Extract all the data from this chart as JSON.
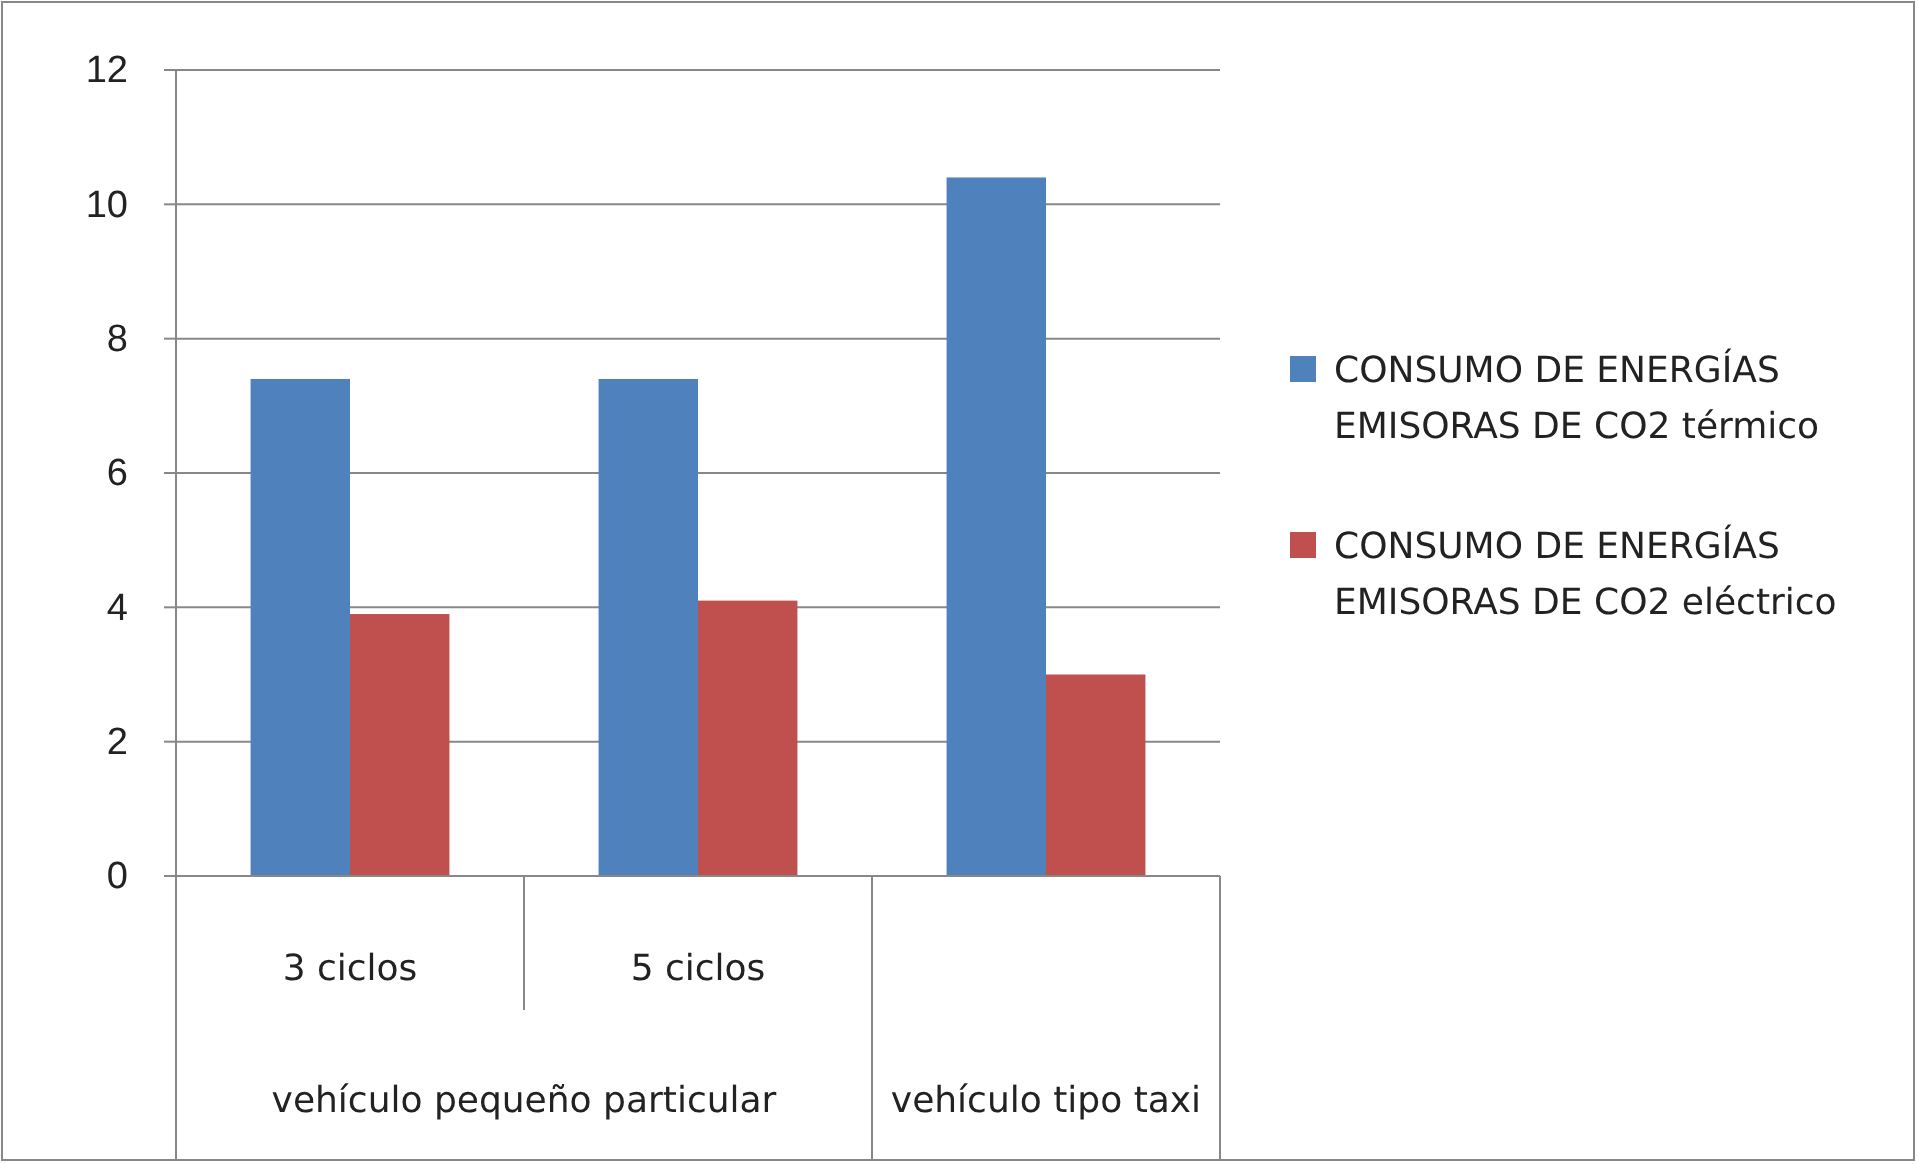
{
  "chart_data": {
    "type": "bar",
    "categories": [
      "3 ciclos",
      "5 ciclos",
      null
    ],
    "series": [
      {
        "name": "CONSUMO DE ENERGÍAS EMISORAS DE CO2 térmico",
        "color": "#4f81bd",
        "values": [
          7.4,
          7.4,
          10.4
        ]
      },
      {
        "name": "CONSUMO DE ENERGÍAS EMISORAS DE CO2 eléctrico",
        "color": "#c0504d",
        "values": [
          3.9,
          4.1,
          3.0
        ]
      }
    ],
    "annotations": [
      "vehículo pequeño particular",
      "vehículo tipo taxi"
    ],
    "ylim": [
      0,
      12
    ],
    "yticks": [
      0,
      2,
      4,
      6,
      8,
      10,
      12
    ],
    "grid": "y",
    "legend": "right"
  }
}
